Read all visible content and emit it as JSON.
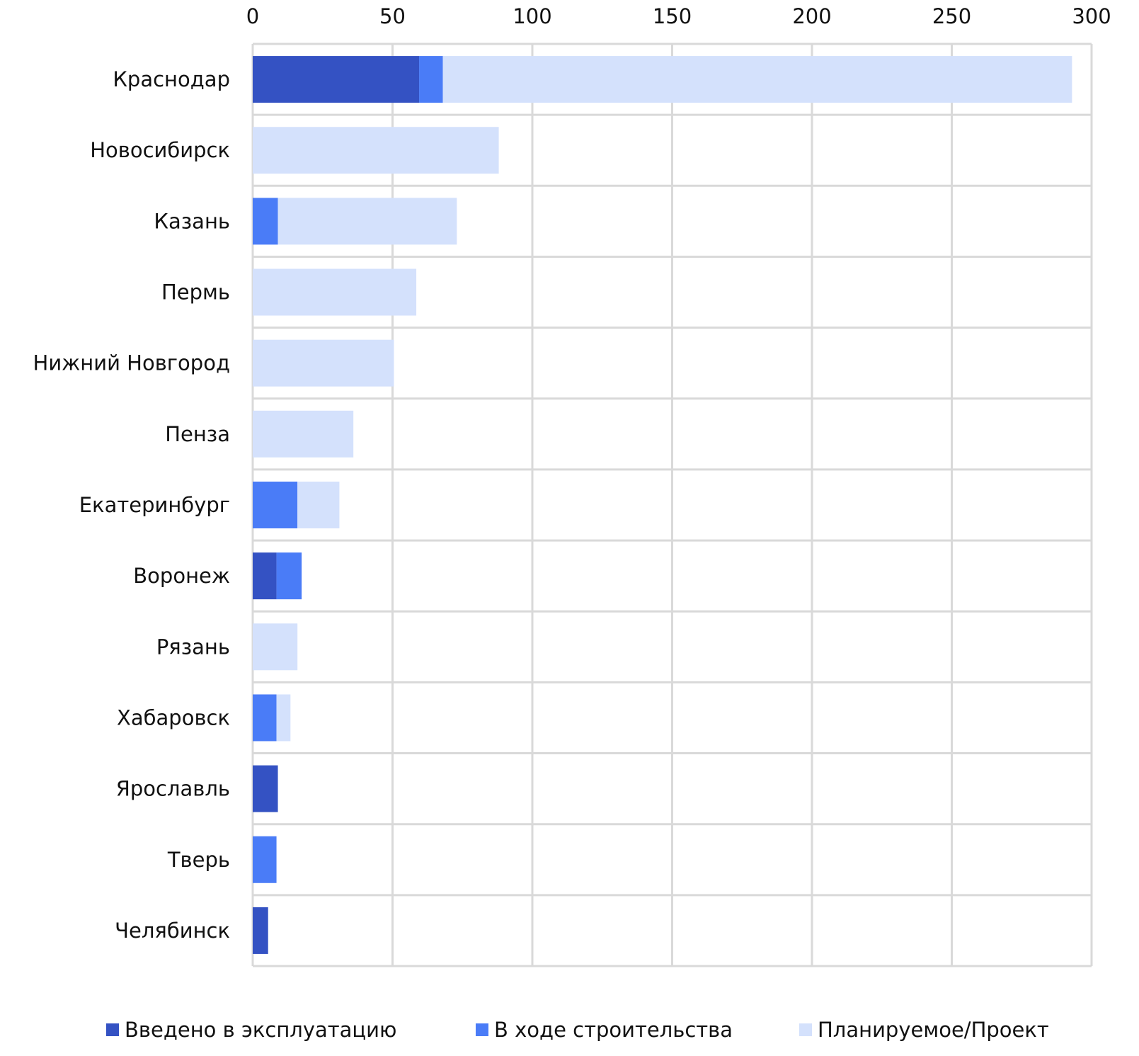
{
  "chart_data": {
    "type": "bar",
    "orientation": "horizontal",
    "stacked": true,
    "categories": [
      "Краснодар",
      "Новосибирск",
      "Казань",
      "Пермь",
      "Нижний Новгород",
      "Пенза",
      "Екатеринбург",
      "Воронеж",
      "Рязань",
      "Хабаровск",
      "Ярославль",
      "Тверь",
      "Челябинск"
    ],
    "series": [
      {
        "name": "Введено в эксплуатацию",
        "color": "#3452C3",
        "values": [
          59.5,
          0,
          0,
          0,
          0,
          0,
          0,
          8.5,
          0,
          0,
          9,
          0,
          5.5
        ]
      },
      {
        "name": "В ходе строительства",
        "color": "#4A7CF7",
        "values": [
          8.5,
          0,
          9,
          0,
          0,
          0,
          16,
          9,
          0,
          8.5,
          0,
          8.5,
          0
        ]
      },
      {
        "name": "Планируемое/Проект",
        "color": "#D4E1FC",
        "values": [
          225,
          88,
          64,
          58.5,
          50.5,
          36,
          15,
          0,
          16,
          5,
          0,
          0,
          0
        ]
      }
    ],
    "xlim": [
      0,
      300
    ],
    "xticks": [
      "0",
      "50",
      "100",
      "150",
      "200",
      "250",
      "300"
    ],
    "x_axis_position": "top",
    "grid": true,
    "legend_position": "bottom",
    "title": "",
    "xlabel": "",
    "ylabel": ""
  }
}
